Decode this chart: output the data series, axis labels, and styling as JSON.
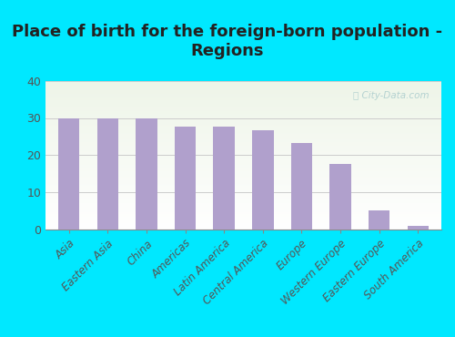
{
  "title": "Place of birth for the foreign-born population -\nRegions",
  "categories": [
    "Asia",
    "Eastern Asia",
    "China",
    "Americas",
    "Latin America",
    "Central America",
    "Europe",
    "Western Europe",
    "Eastern Europe",
    "South America"
  ],
  "values": [
    30.0,
    30.0,
    30.0,
    27.7,
    27.7,
    26.7,
    23.3,
    17.7,
    5.0,
    1.0
  ],
  "bar_color": "#b0a0cc",
  "ylim": [
    0,
    40
  ],
  "yticks": [
    0,
    10,
    20,
    30,
    40
  ],
  "background_outer": "#00e8ff",
  "background_inner_top": "#eef5e8",
  "background_inner_bottom": "#ffffff",
  "watermark": "ⓘ City-Data.com",
  "grid_color": "#cccccc",
  "title_fontsize": 13,
  "tick_fontsize": 8.5,
  "ytick_fontsize": 9,
  "bar_width": 0.55
}
